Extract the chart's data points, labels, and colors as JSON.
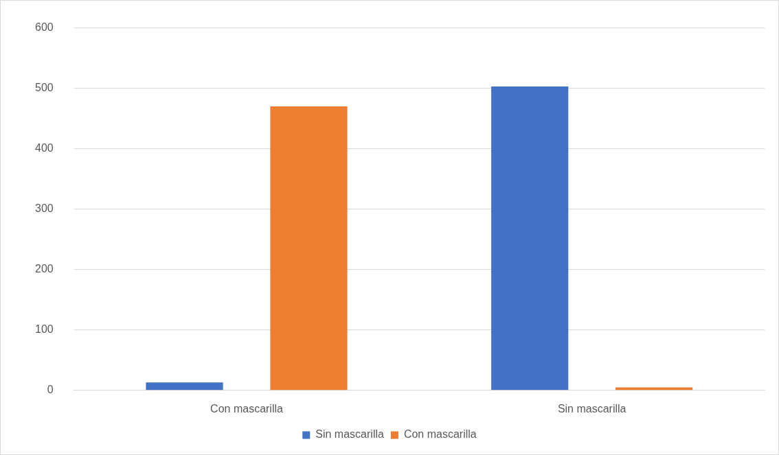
{
  "chart_data": {
    "type": "bar",
    "categories": [
      "Con mascarilla",
      "Sin mascarilla"
    ],
    "series": [
      {
        "name": "Sin mascarilla",
        "color": "#4472c4",
        "values": [
          13,
          503
        ]
      },
      {
        "name": "Con mascarilla",
        "color": "#ed7d31",
        "values": [
          470,
          5
        ]
      }
    ],
    "ylim": [
      0,
      600
    ],
    "yticks": [
      0,
      100,
      200,
      300,
      400,
      500,
      600
    ],
    "grid": "y",
    "legend": "bottom"
  }
}
